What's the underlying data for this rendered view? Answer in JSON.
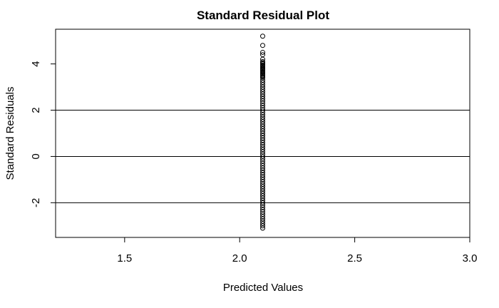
{
  "chart_data": {
    "type": "scatter",
    "title": "Standard Residual Plot",
    "xlabel": "Predicted Values",
    "ylabel": "Standard Residuals",
    "xlim": [
      1.2,
      3.0
    ],
    "ylim": [
      -3.5,
      5.5
    ],
    "x_ticks": [
      "1.5",
      "2.0",
      "2.5",
      "3.0"
    ],
    "y_ticks": [
      "-2",
      "0",
      "2",
      "4"
    ],
    "reference_lines_y": [
      -2,
      0,
      2
    ],
    "grid": false,
    "marker": "open-circle",
    "series": [
      {
        "x_constant": 2.1,
        "y_values": [
          5.2,
          4.8,
          4.5,
          4.4,
          4.2,
          4.1,
          4.05,
          4.0,
          3.95,
          3.9,
          3.85,
          3.8,
          3.75,
          3.7,
          3.65,
          3.6,
          3.55,
          3.5,
          3.45,
          3.4,
          3.3,
          3.2,
          3.1,
          3.0,
          2.9,
          2.8,
          2.7,
          2.6,
          2.5,
          2.4,
          2.3,
          2.2,
          2.1,
          2.0,
          1.9,
          1.8,
          1.7,
          1.6,
          1.5,
          1.4,
          1.3,
          1.2,
          1.1,
          1.0,
          0.9,
          0.8,
          0.7,
          0.6,
          0.5,
          0.4,
          0.3,
          0.2,
          0.1,
          0.0,
          -0.1,
          -0.2,
          -0.3,
          -0.4,
          -0.5,
          -0.6,
          -0.7,
          -0.8,
          -0.9,
          -1.0,
          -1.1,
          -1.2,
          -1.3,
          -1.4,
          -1.5,
          -1.6,
          -1.7,
          -1.8,
          -1.9,
          -2.0,
          -2.1,
          -2.2,
          -2.3,
          -2.4,
          -2.5,
          -2.6,
          -2.7,
          -2.8,
          -2.9,
          -3.0,
          -3.1
        ]
      }
    ]
  }
}
